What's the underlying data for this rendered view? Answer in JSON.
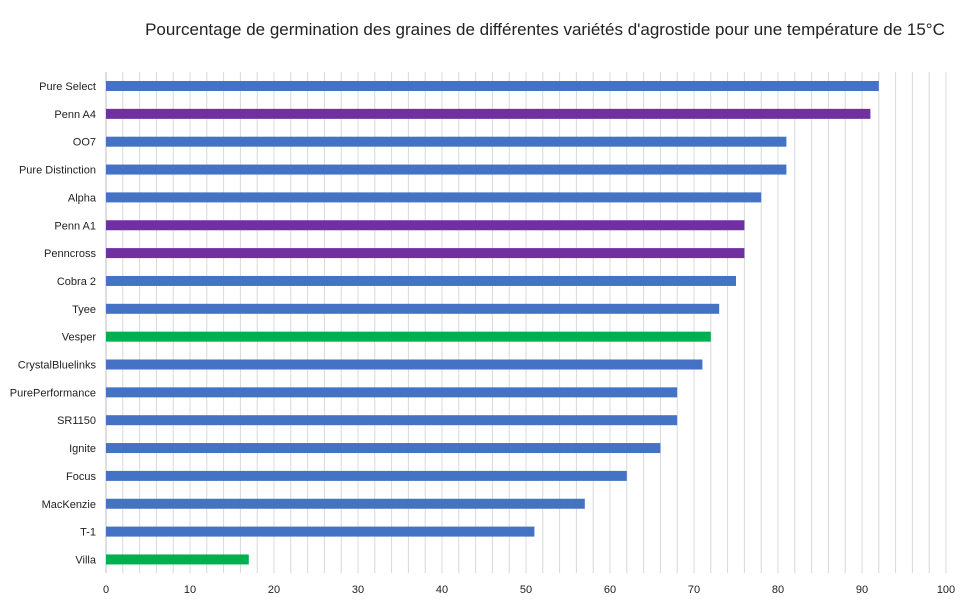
{
  "chart_data": {
    "type": "bar",
    "orientation": "horizontal",
    "title": "Pourcentage de germination des graines de différentes variétés d'agrostide pour une température de 15°C",
    "xlabel": "",
    "ylabel": "",
    "xlim": [
      0,
      100
    ],
    "x_ticks": [
      0,
      10,
      20,
      30,
      40,
      50,
      60,
      70,
      80,
      90,
      100
    ],
    "grid": "vertical",
    "legend": "none",
    "categories": [
      "Pure Select",
      "Penn A4",
      "OO7",
      "Pure Distinction",
      "Alpha",
      "Penn A1",
      "Penncross",
      "Cobra 2",
      "Tyee",
      "Vesper",
      "CrystalBluelinks",
      "PurePerformance",
      "SR1150",
      "Ignite",
      "Focus",
      "MacKenzie",
      "T-1",
      "Villa"
    ],
    "values": [
      92,
      91,
      81,
      81,
      78,
      76,
      76,
      75,
      73,
      72,
      71,
      68,
      68,
      66,
      62,
      57,
      51,
      17
    ],
    "bar_colors": [
      "#4472c4",
      "#7030a0",
      "#4472c4",
      "#4472c4",
      "#4472c4",
      "#7030a0",
      "#7030a0",
      "#4472c4",
      "#4472c4",
      "#00b050",
      "#4472c4",
      "#4472c4",
      "#4472c4",
      "#4472c4",
      "#4472c4",
      "#4472c4",
      "#4472c4",
      "#00b050"
    ]
  }
}
